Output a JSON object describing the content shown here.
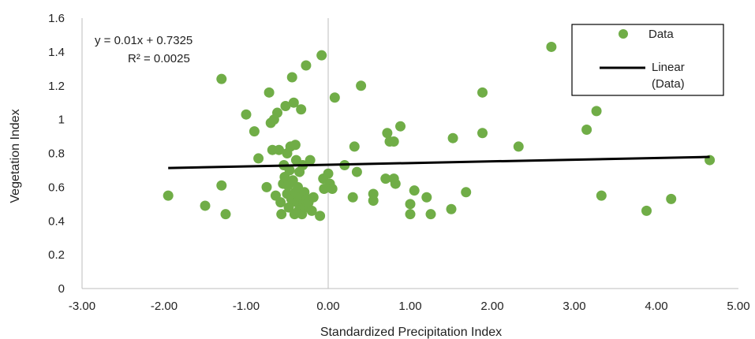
{
  "chart_data": {
    "type": "scatter",
    "xlabel": "Standardized Precipitation Index",
    "ylabel": "Vegetation Index",
    "xlim": [
      -3,
      5
    ],
    "ylim": [
      0,
      1.6
    ],
    "x_ticks": [
      "-3.00",
      "-2.00",
      "-1.00",
      "0.00",
      "1.00",
      "2.00",
      "3.00",
      "4.00",
      "5.00"
    ],
    "y_ticks": [
      "0",
      "0.2",
      "0.4",
      "0.6",
      "0.8",
      "1",
      "1.2",
      "1.4",
      "1.6"
    ],
    "grid": false,
    "legend_position": "top-right",
    "series": [
      {
        "name": "Data",
        "kind": "scatter",
        "color": "#70ad47",
        "points": [
          [
            -1.95,
            0.55
          ],
          [
            -1.5,
            0.49
          ],
          [
            -1.25,
            0.44
          ],
          [
            -1.3,
            0.61
          ],
          [
            -1.3,
            1.24
          ],
          [
            -1.0,
            1.03
          ],
          [
            -0.9,
            0.93
          ],
          [
            -0.85,
            0.77
          ],
          [
            -0.75,
            0.6
          ],
          [
            -0.72,
            1.16
          ],
          [
            -0.7,
            0.98
          ],
          [
            -0.68,
            0.82
          ],
          [
            -0.66,
            1.0
          ],
          [
            -0.64,
            0.55
          ],
          [
            -0.62,
            1.04
          ],
          [
            -0.6,
            0.82
          ],
          [
            -0.58,
            0.51
          ],
          [
            -0.57,
            0.44
          ],
          [
            -0.55,
            0.62
          ],
          [
            -0.54,
            0.73
          ],
          [
            -0.53,
            0.66
          ],
          [
            -0.52,
            1.08
          ],
          [
            -0.5,
            0.8
          ],
          [
            -0.5,
            0.56
          ],
          [
            -0.49,
            0.61
          ],
          [
            -0.48,
            0.48
          ],
          [
            -0.47,
            0.7
          ],
          [
            -0.46,
            0.84
          ],
          [
            -0.45,
            0.53
          ],
          [
            -0.44,
            1.25
          ],
          [
            -0.43,
            0.64
          ],
          [
            -0.42,
            1.1
          ],
          [
            -0.41,
            0.44
          ],
          [
            -0.4,
            0.57
          ],
          [
            -0.4,
            0.85
          ],
          [
            -0.39,
            0.76
          ],
          [
            -0.38,
            0.51
          ],
          [
            -0.37,
            0.6
          ],
          [
            -0.36,
            0.46
          ],
          [
            -0.35,
            0.69
          ],
          [
            -0.34,
            0.54
          ],
          [
            -0.33,
            1.06
          ],
          [
            -0.32,
            0.44
          ],
          [
            -0.31,
            0.73
          ],
          [
            -0.3,
            0.51
          ],
          [
            -0.29,
            0.57
          ],
          [
            -0.28,
            0.48
          ],
          [
            -0.27,
            1.32
          ],
          [
            -0.26,
            0.53
          ],
          [
            -0.25,
            0.49
          ],
          [
            -0.24,
            0.51
          ],
          [
            -0.22,
            0.76
          ],
          [
            -0.2,
            0.46
          ],
          [
            -0.18,
            0.54
          ],
          [
            -0.1,
            0.43
          ],
          [
            -0.08,
            1.38
          ],
          [
            -0.06,
            0.65
          ],
          [
            -0.05,
            0.59
          ],
          [
            0.0,
            0.68
          ],
          [
            0.02,
            0.62
          ],
          [
            0.05,
            0.59
          ],
          [
            0.08,
            1.13
          ],
          [
            0.2,
            0.73
          ],
          [
            0.3,
            0.54
          ],
          [
            0.32,
            0.84
          ],
          [
            0.35,
            0.69
          ],
          [
            0.4,
            1.2
          ],
          [
            0.55,
            0.56
          ],
          [
            0.55,
            0.52
          ],
          [
            0.7,
            0.65
          ],
          [
            0.72,
            0.92
          ],
          [
            0.75,
            0.87
          ],
          [
            0.8,
            0.87
          ],
          [
            0.8,
            0.65
          ],
          [
            0.82,
            0.62
          ],
          [
            0.88,
            0.96
          ],
          [
            1.0,
            0.5
          ],
          [
            1.0,
            0.44
          ],
          [
            1.05,
            0.58
          ],
          [
            1.2,
            0.54
          ],
          [
            1.25,
            0.44
          ],
          [
            1.5,
            0.47
          ],
          [
            1.52,
            0.89
          ],
          [
            1.68,
            0.57
          ],
          [
            1.88,
            1.16
          ],
          [
            1.88,
            0.92
          ],
          [
            2.32,
            0.84
          ],
          [
            2.72,
            1.43
          ],
          [
            3.15,
            0.94
          ],
          [
            3.27,
            1.05
          ],
          [
            3.33,
            0.55
          ],
          [
            3.88,
            0.46
          ],
          [
            4.18,
            0.53
          ],
          [
            4.65,
            0.76
          ]
        ]
      },
      {
        "name": "Linear (Data)",
        "kind": "trendline",
        "color": "#000000",
        "slope": 0.01,
        "intercept": 0.7325,
        "x_range": [
          -1.95,
          4.65
        ]
      }
    ],
    "annotations": {
      "equation": "y = 0.01x + 0.7325",
      "r_squared": "R² = 0.0025"
    },
    "legend": {
      "entries": [
        "Data",
        "Linear",
        "(Data)"
      ]
    }
  }
}
